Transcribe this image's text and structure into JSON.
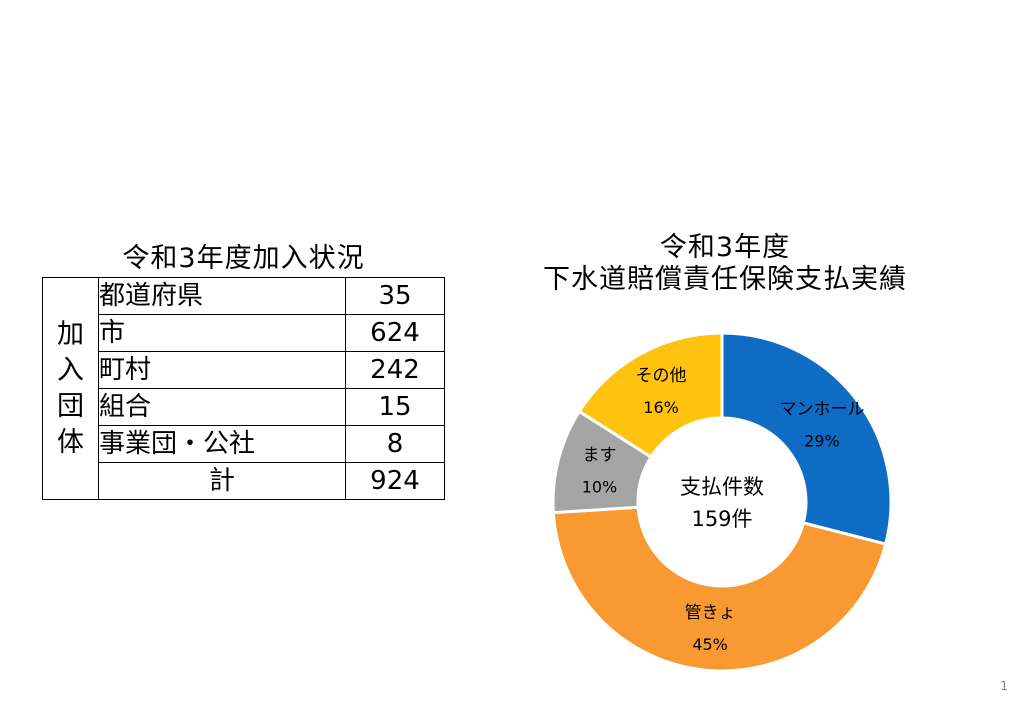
{
  "table": {
    "title": "令和3年度加入状況",
    "group_label": [
      "加",
      "入",
      "団",
      "体"
    ],
    "rows": [
      {
        "label": "都道府県",
        "value": "35"
      },
      {
        "label": "市",
        "value": "624"
      },
      {
        "label": "町村",
        "value": "242"
      },
      {
        "label": "組合",
        "value": "15"
      },
      {
        "label": "事業団・公社",
        "value": "8"
      }
    ],
    "total": {
      "label": "計",
      "value": "924"
    }
  },
  "chart_title_line1": "令和3年度",
  "chart_title_line2": "下水道賠償責任保険支払実績",
  "center_label_line1": "支払件数",
  "center_label_line2": "159件",
  "page_number": "1",
  "colors": {
    "manhole": "#0F6CC4",
    "pipe": "#F89A31",
    "masu": "#A5A5A5",
    "other": "#FFC20E"
  },
  "chart_data": {
    "type": "pie",
    "variant": "donut",
    "title": "令和3年度 下水道賠償責任保険支払実績",
    "center_text": "支払件数 159件",
    "series": [
      {
        "name": "マンホール",
        "value": 29,
        "label": "29%"
      },
      {
        "name": "管きょ",
        "value": 45,
        "label": "45%"
      },
      {
        "name": "ます",
        "value": 10,
        "label": "10%"
      },
      {
        "name": "その他",
        "value": 16,
        "label": "16%"
      }
    ]
  }
}
